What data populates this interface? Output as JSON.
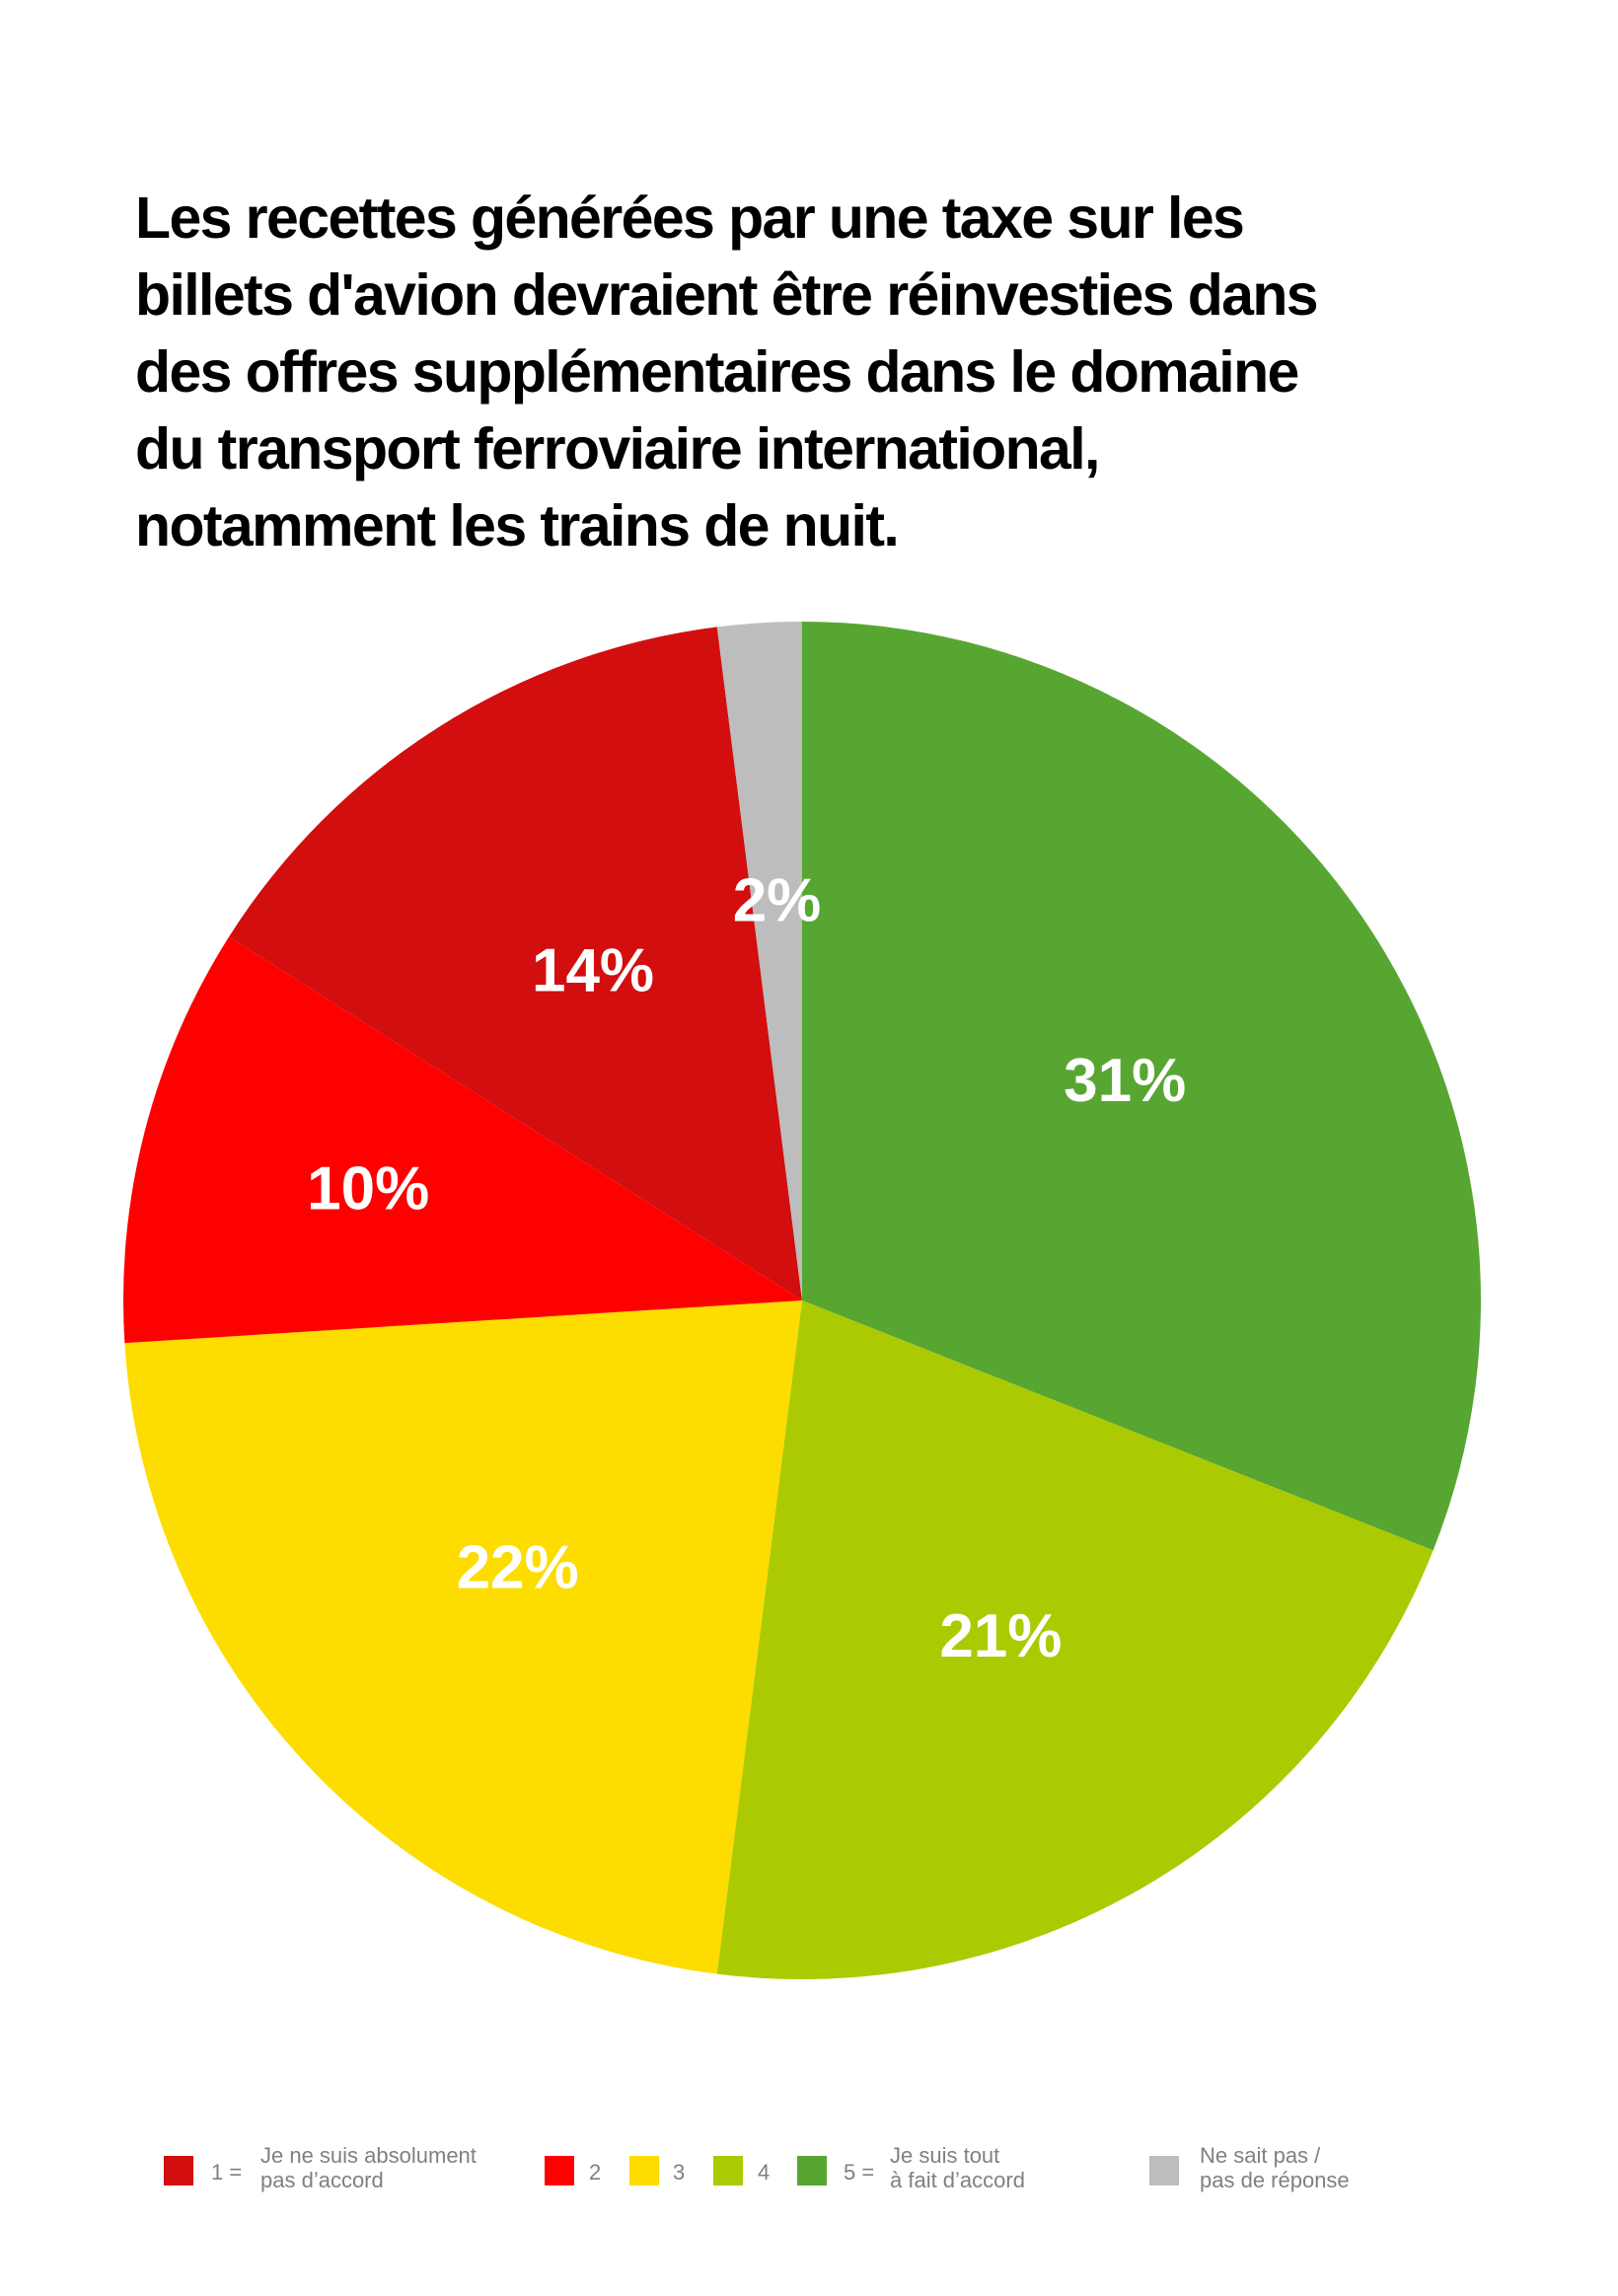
{
  "chart_data": {
    "type": "pie",
    "title_lines": [
      "Les recettes générées par une taxe sur les",
      "billets d'avion devraient être réinvesties dans",
      "des offres supplémentaires dans le domaine",
      "du transport ferroviaire international,",
      "notamment les trains de nuit."
    ],
    "slices": [
      {
        "label": "5",
        "value": 31,
        "display": "31%",
        "color": "#57a632"
      },
      {
        "label": "4",
        "value": 21,
        "display": "21%",
        "color": "#abca02"
      },
      {
        "label": "3",
        "value": 22,
        "display": "22%",
        "color": "#fddc00"
      },
      {
        "label": "2",
        "value": 10,
        "display": "10%",
        "color": "#fe0000"
      },
      {
        "label": "1",
        "value": 14,
        "display": "14%",
        "color": "#d20e0f"
      },
      {
        "label": "Ne sait pas / pas de réponse",
        "value": 2,
        "display": "2%",
        "color": "#bdbdbd"
      }
    ]
  },
  "legend": [
    {
      "number": "1 =",
      "text_lines": [
        "Je ne suis absolument",
        "pas d’accord"
      ],
      "color": "#d20e0f"
    },
    {
      "number": "2",
      "text_lines": [],
      "color": "#fe0000"
    },
    {
      "number": "3",
      "text_lines": [],
      "color": "#fddc00"
    },
    {
      "number": "4",
      "text_lines": [],
      "color": "#abca02"
    },
    {
      "number": "5 =",
      "text_lines": [
        "Je suis tout",
        "à fait d’accord"
      ],
      "color": "#57a632"
    },
    {
      "number": "",
      "text_lines": [
        "Ne sait pas /",
        "pas de réponse"
      ],
      "color": "#bdbdbd"
    }
  ]
}
